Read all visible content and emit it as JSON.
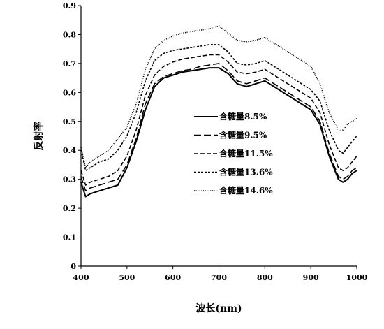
{
  "chart_data": {
    "type": "line",
    "title": "",
    "xlabel": "波长(nm)",
    "ylabel": "反射率",
    "xlim": [
      400,
      1000
    ],
    "ylim": [
      0,
      0.9
    ],
    "xticks": [
      400,
      500,
      600,
      700,
      800,
      900,
      1000
    ],
    "yticks": [
      0,
      0.1,
      0.2,
      0.3,
      0.4,
      0.5,
      0.6,
      0.7,
      0.8,
      0.9
    ],
    "grid": false,
    "legend_position": "center-right",
    "x": [
      400,
      410,
      420,
      440,
      460,
      480,
      500,
      520,
      540,
      560,
      580,
      600,
      620,
      640,
      660,
      680,
      700,
      720,
      740,
      760,
      780,
      800,
      820,
      840,
      860,
      880,
      900,
      920,
      940,
      960,
      970,
      980,
      990,
      1000
    ],
    "series": [
      {
        "name": "含糖量8.5%",
        "dash": "solid",
        "values": [
          0.29,
          0.24,
          0.25,
          0.26,
          0.27,
          0.28,
          0.34,
          0.43,
          0.54,
          0.62,
          0.65,
          0.66,
          0.67,
          0.675,
          0.68,
          0.685,
          0.685,
          0.665,
          0.63,
          0.62,
          0.63,
          0.64,
          0.62,
          0.6,
          0.58,
          0.56,
          0.54,
          0.49,
          0.38,
          0.3,
          0.29,
          0.3,
          0.32,
          0.33
        ]
      },
      {
        "name": "含糖量9.5%",
        "dash": "longdash",
        "values": [
          0.31,
          0.26,
          0.27,
          0.28,
          0.29,
          0.3,
          0.35,
          0.44,
          0.56,
          0.63,
          0.655,
          0.665,
          0.675,
          0.68,
          0.69,
          0.695,
          0.7,
          0.675,
          0.64,
          0.63,
          0.64,
          0.65,
          0.63,
          0.61,
          0.59,
          0.57,
          0.55,
          0.5,
          0.39,
          0.31,
          0.3,
          0.31,
          0.33,
          0.34
        ]
      },
      {
        "name": "含糖量11.5%",
        "dash": "dash",
        "values": [
          0.33,
          0.28,
          0.29,
          0.3,
          0.31,
          0.33,
          0.38,
          0.47,
          0.59,
          0.66,
          0.69,
          0.705,
          0.715,
          0.72,
          0.725,
          0.73,
          0.73,
          0.705,
          0.67,
          0.665,
          0.67,
          0.68,
          0.66,
          0.64,
          0.62,
          0.6,
          0.58,
          0.53,
          0.42,
          0.34,
          0.33,
          0.34,
          0.36,
          0.38
        ]
      },
      {
        "name": "含糖量13.6%",
        "dash": "shortdash",
        "values": [
          0.4,
          0.33,
          0.34,
          0.36,
          0.37,
          0.4,
          0.45,
          0.53,
          0.64,
          0.71,
          0.735,
          0.745,
          0.75,
          0.755,
          0.76,
          0.765,
          0.765,
          0.74,
          0.7,
          0.695,
          0.7,
          0.71,
          0.69,
          0.67,
          0.65,
          0.63,
          0.61,
          0.57,
          0.47,
          0.4,
          0.39,
          0.41,
          0.43,
          0.45
        ]
      },
      {
        "name": "含糖量14.6%",
        "dash": "dot",
        "values": [
          0.41,
          0.34,
          0.36,
          0.38,
          0.4,
          0.44,
          0.48,
          0.56,
          0.68,
          0.75,
          0.78,
          0.795,
          0.805,
          0.81,
          0.815,
          0.82,
          0.83,
          0.805,
          0.78,
          0.775,
          0.78,
          0.79,
          0.77,
          0.75,
          0.73,
          0.71,
          0.69,
          0.63,
          0.53,
          0.47,
          0.47,
          0.49,
          0.5,
          0.51
        ]
      }
    ]
  }
}
